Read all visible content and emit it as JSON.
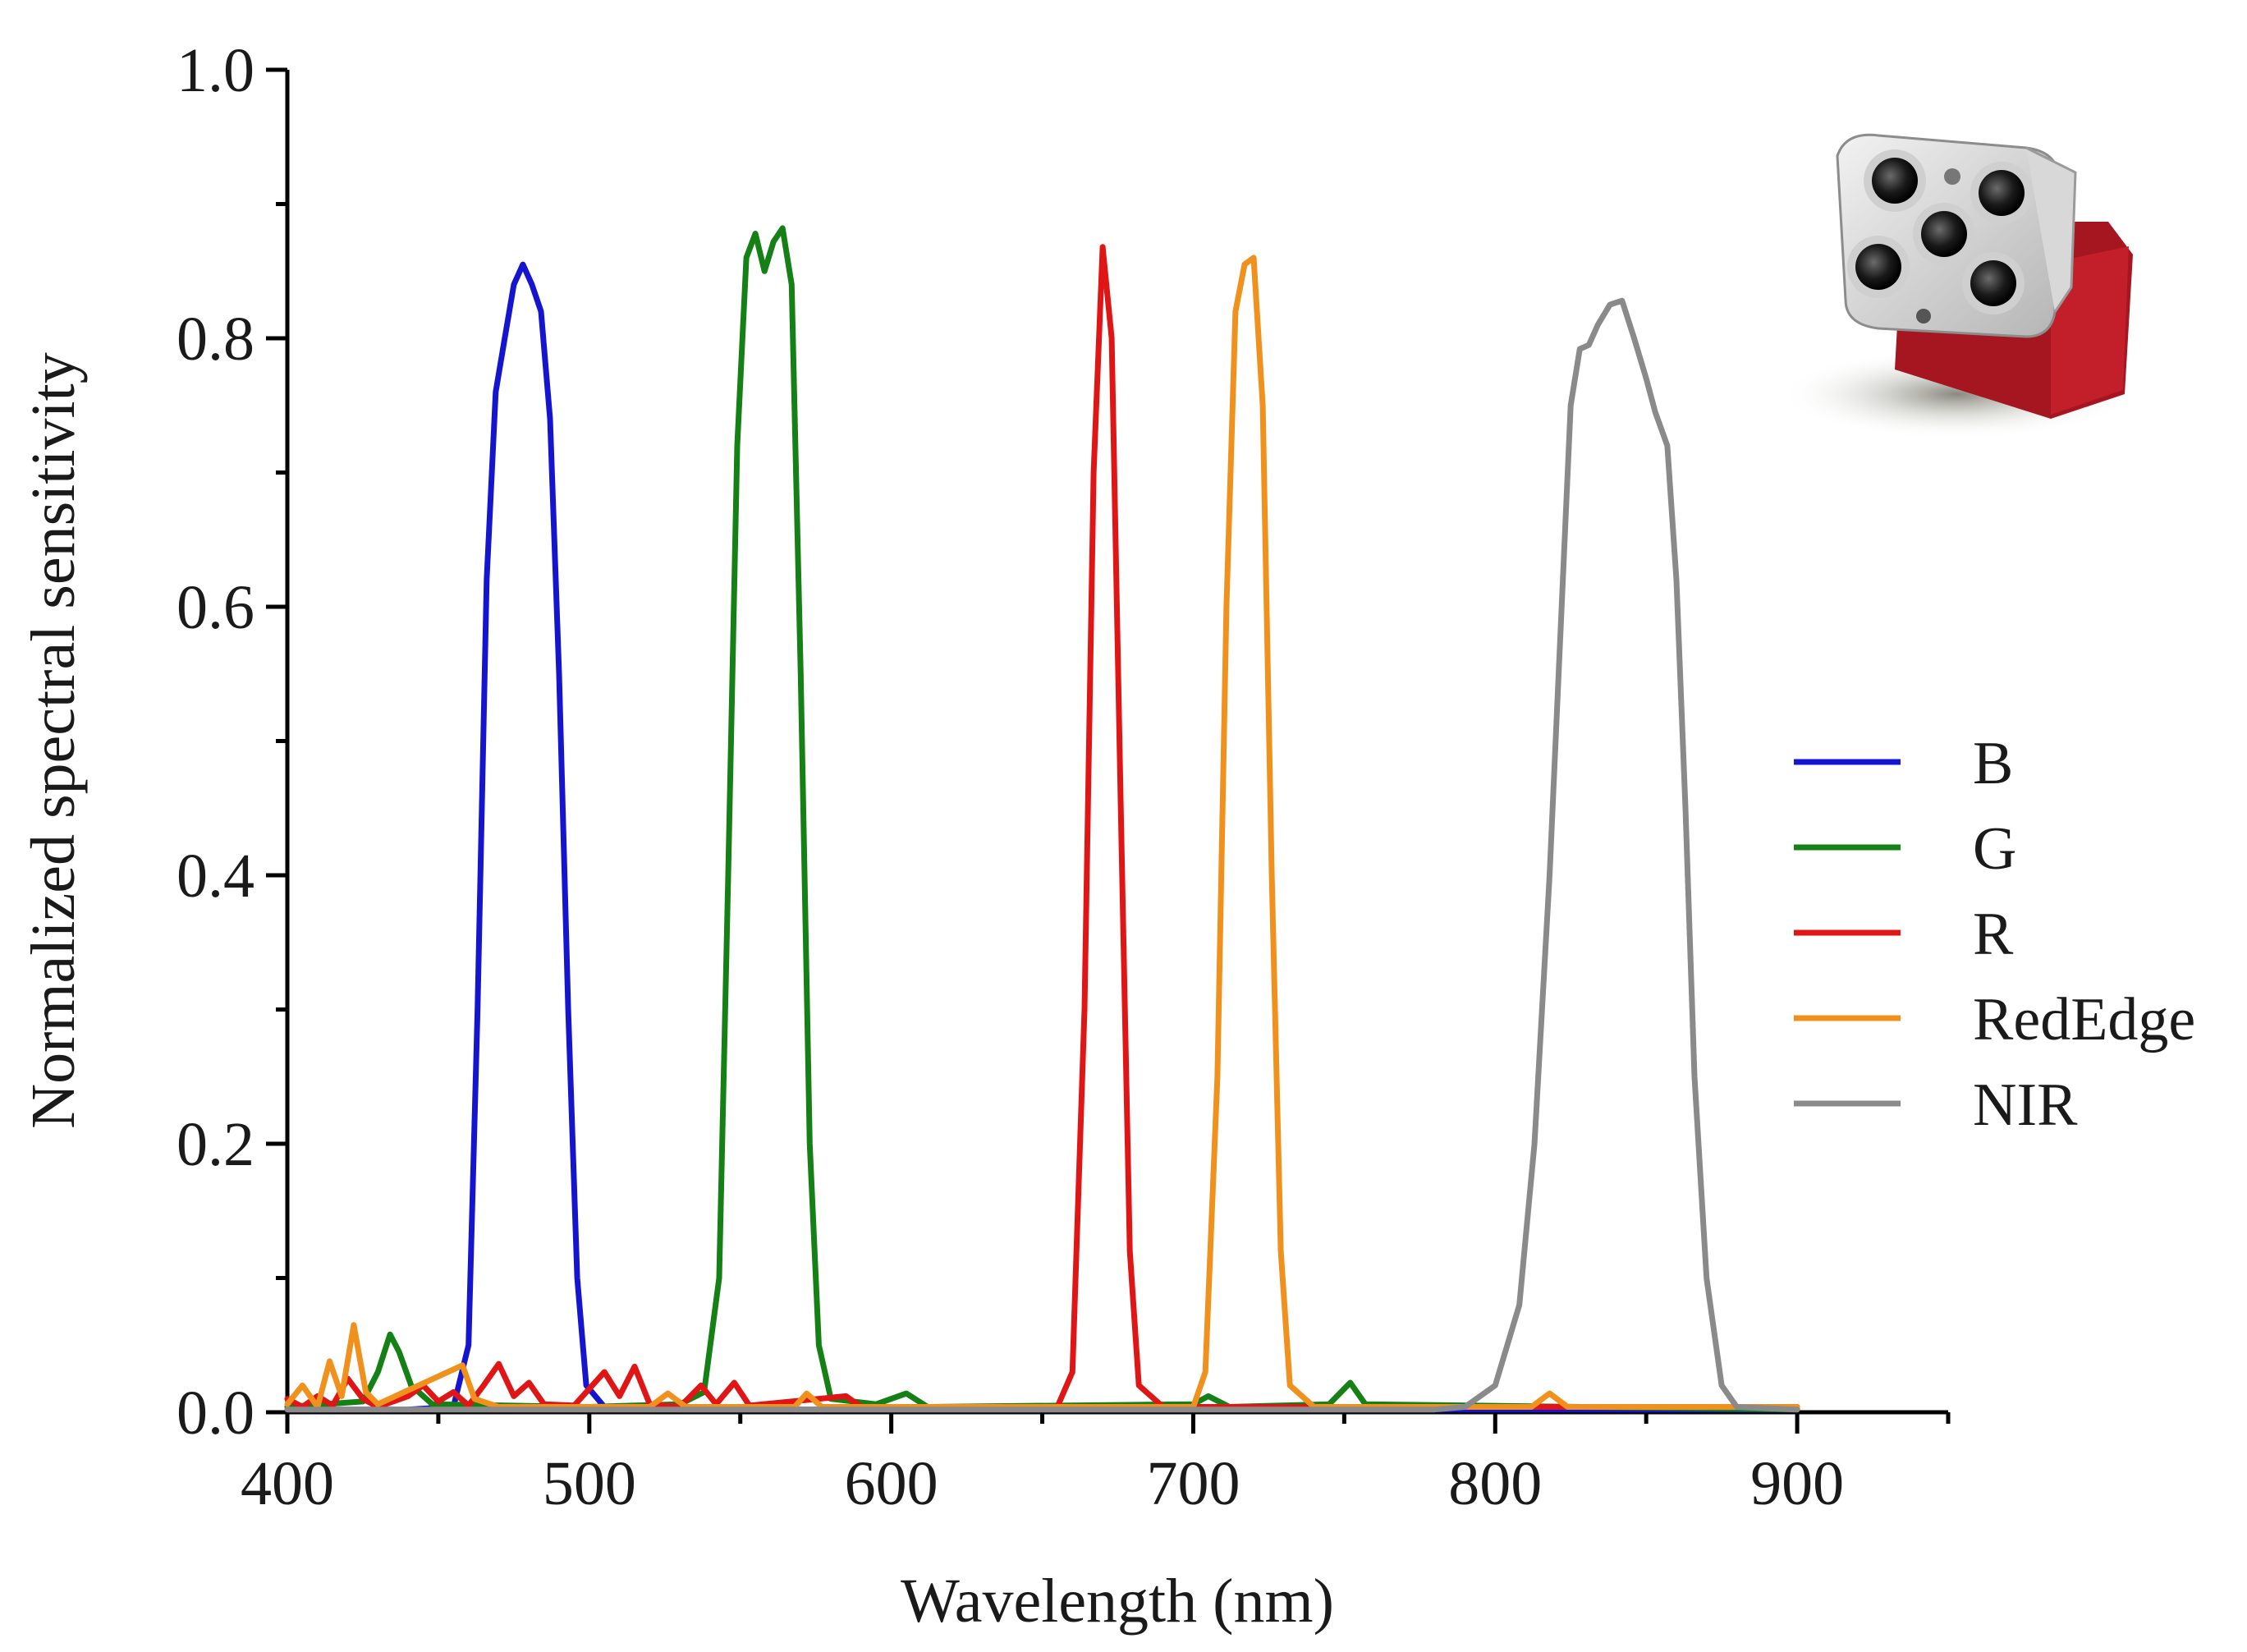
{
  "chart_data": {
    "type": "line",
    "title": "",
    "xlabel": "Wavelength (nm)",
    "ylabel": "Normalized spectral sensitivity",
    "xlim": [
      400,
      950
    ],
    "ylim": [
      0,
      1.0
    ],
    "x_ticks": [
      400,
      500,
      600,
      700,
      800,
      900
    ],
    "x_tick_labels": [
      "400",
      "500",
      "600",
      "700",
      "800",
      "900"
    ],
    "y_ticks": [
      0,
      0.2,
      0.4,
      0.6,
      0.8,
      1.0
    ],
    "y_tick_labels": [
      "0.0",
      "0.2",
      "0.4",
      "0.6",
      "0.8",
      "1.0"
    ],
    "grid": false,
    "legend_position": "right",
    "inset_image": "multispectral-camera",
    "series": [
      {
        "name": "B",
        "color": "#1515d0",
        "points": [
          [
            400,
            0.002
          ],
          [
            440,
            0.002
          ],
          [
            455,
            0.004
          ],
          [
            460,
            0.05
          ],
          [
            463,
            0.3
          ],
          [
            466,
            0.62
          ],
          [
            469,
            0.76
          ],
          [
            472,
            0.8
          ],
          [
            475,
            0.84
          ],
          [
            478,
            0.855
          ],
          [
            481,
            0.84
          ],
          [
            484,
            0.82
          ],
          [
            487,
            0.74
          ],
          [
            490,
            0.55
          ],
          [
            493,
            0.3
          ],
          [
            496,
            0.1
          ],
          [
            499,
            0.02
          ],
          [
            505,
            0.004
          ],
          [
            530,
            0.002
          ],
          [
            900,
            0.002
          ]
        ]
      },
      {
        "name": "G",
        "color": "#158015",
        "points": [
          [
            400,
            0.004
          ],
          [
            425,
            0.008
          ],
          [
            430,
            0.03
          ],
          [
            434,
            0.058
          ],
          [
            437,
            0.045
          ],
          [
            441,
            0.02
          ],
          [
            448,
            0.006
          ],
          [
            500,
            0.004
          ],
          [
            530,
            0.006
          ],
          [
            538,
            0.015
          ],
          [
            543,
            0.1
          ],
          [
            546,
            0.4
          ],
          [
            549,
            0.72
          ],
          [
            552,
            0.86
          ],
          [
            555,
            0.878
          ],
          [
            558,
            0.85
          ],
          [
            561,
            0.872
          ],
          [
            564,
            0.882
          ],
          [
            567,
            0.84
          ],
          [
            570,
            0.55
          ],
          [
            573,
            0.2
          ],
          [
            576,
            0.05
          ],
          [
            580,
            0.01
          ],
          [
            595,
            0.006
          ],
          [
            605,
            0.014
          ],
          [
            612,
            0.004
          ],
          [
            700,
            0.006
          ],
          [
            705,
            0.012
          ],
          [
            712,
            0.004
          ],
          [
            745,
            0.006
          ],
          [
            752,
            0.022
          ],
          [
            757,
            0.006
          ],
          [
            900,
            0.002
          ]
        ]
      },
      {
        "name": "R",
        "color": "#e01515",
        "points": [
          [
            400,
            0.01
          ],
          [
            405,
            0.004
          ],
          [
            410,
            0.012
          ],
          [
            415,
            0.005
          ],
          [
            420,
            0.025
          ],
          [
            425,
            0.01
          ],
          [
            430,
            0.004
          ],
          [
            440,
            0.012
          ],
          [
            445,
            0.02
          ],
          [
            450,
            0.008
          ],
          [
            455,
            0.015
          ],
          [
            460,
            0.005
          ],
          [
            465,
            0.02
          ],
          [
            470,
            0.036
          ],
          [
            475,
            0.012
          ],
          [
            480,
            0.022
          ],
          [
            485,
            0.006
          ],
          [
            495,
            0.005
          ],
          [
            505,
            0.03
          ],
          [
            510,
            0.012
          ],
          [
            515,
            0.034
          ],
          [
            520,
            0.006
          ],
          [
            530,
            0.004
          ],
          [
            537,
            0.02
          ],
          [
            542,
            0.006
          ],
          [
            548,
            0.022
          ],
          [
            553,
            0.005
          ],
          [
            585,
            0.012
          ],
          [
            590,
            0.004
          ],
          [
            655,
            0.004
          ],
          [
            660,
            0.03
          ],
          [
            664,
            0.3
          ],
          [
            667,
            0.7
          ],
          [
            670,
            0.868
          ],
          [
            673,
            0.8
          ],
          [
            676,
            0.45
          ],
          [
            679,
            0.12
          ],
          [
            682,
            0.02
          ],
          [
            690,
            0.004
          ],
          [
            900,
            0.004
          ]
        ]
      },
      {
        "name": "RedEdge",
        "color": "#f0911e",
        "points": [
          [
            400,
            0.006
          ],
          [
            405,
            0.02
          ],
          [
            410,
            0.004
          ],
          [
            414,
            0.038
          ],
          [
            418,
            0.012
          ],
          [
            422,
            0.065
          ],
          [
            426,
            0.015
          ],
          [
            430,
            0.006
          ],
          [
            458,
            0.035
          ],
          [
            462,
            0.01
          ],
          [
            470,
            0.004
          ],
          [
            520,
            0.004
          ],
          [
            526,
            0.014
          ],
          [
            532,
            0.004
          ],
          [
            568,
            0.004
          ],
          [
            572,
            0.014
          ],
          [
            577,
            0.004
          ],
          [
            700,
            0.004
          ],
          [
            704,
            0.03
          ],
          [
            708,
            0.25
          ],
          [
            711,
            0.6
          ],
          [
            714,
            0.82
          ],
          [
            717,
            0.855
          ],
          [
            720,
            0.86
          ],
          [
            723,
            0.75
          ],
          [
            726,
            0.4
          ],
          [
            729,
            0.12
          ],
          [
            732,
            0.02
          ],
          [
            740,
            0.004
          ],
          [
            812,
            0.004
          ],
          [
            818,
            0.014
          ],
          [
            824,
            0.004
          ],
          [
            900,
            0.004
          ]
        ]
      },
      {
        "name": "NIR",
        "color": "#8a8a8a",
        "points": [
          [
            400,
            0.002
          ],
          [
            780,
            0.002
          ],
          [
            790,
            0.004
          ],
          [
            800,
            0.02
          ],
          [
            808,
            0.08
          ],
          [
            813,
            0.2
          ],
          [
            818,
            0.4
          ],
          [
            822,
            0.6
          ],
          [
            825,
            0.75
          ],
          [
            828,
            0.792
          ],
          [
            831,
            0.795
          ],
          [
            834,
            0.81
          ],
          [
            838,
            0.825
          ],
          [
            842,
            0.828
          ],
          [
            846,
            0.8
          ],
          [
            850,
            0.77
          ],
          [
            853,
            0.745
          ],
          [
            857,
            0.72
          ],
          [
            860,
            0.62
          ],
          [
            863,
            0.45
          ],
          [
            866,
            0.25
          ],
          [
            870,
            0.1
          ],
          [
            875,
            0.02
          ],
          [
            880,
            0.004
          ],
          [
            900,
            0.002
          ]
        ]
      }
    ]
  }
}
